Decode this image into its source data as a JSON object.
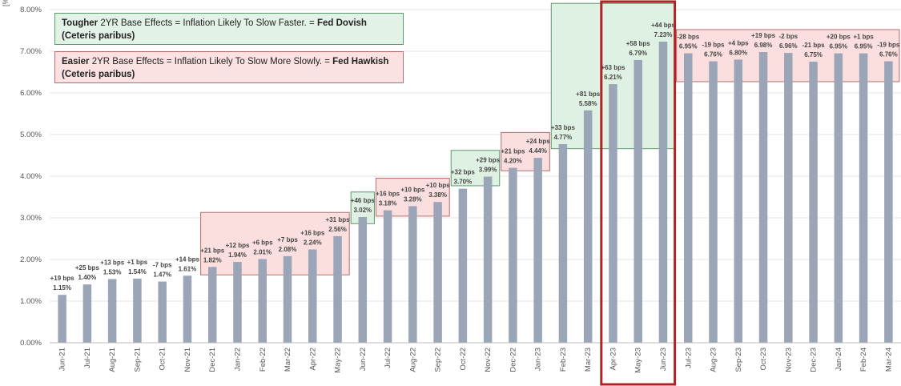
{
  "chart_data": {
    "type": "bar",
    "ylabel": "[%]",
    "ylim": [
      0,
      8
    ],
    "yticks": [
      "0.00%",
      "1.00%",
      "2.00%",
      "3.00%",
      "4.00%",
      "5.00%",
      "6.00%",
      "7.00%",
      "8.00%"
    ],
    "categories": [
      "Jun-21",
      "Jul-21",
      "Aug-21",
      "Sep-21",
      "Oct-21",
      "Nov-21",
      "Dec-21",
      "Jan-22",
      "Feb-22",
      "Mar-22",
      "Apr-22",
      "May-22",
      "Jun-22",
      "Jul-22",
      "Aug-22",
      "Sep-22",
      "Oct-22",
      "Nov-22",
      "Dec-22",
      "Jan-23",
      "Feb-23",
      "Mar-23",
      "Apr-23",
      "May-23",
      "Jun-23",
      "Jul-23",
      "Aug-23",
      "Sep-23",
      "Oct-23",
      "Nov-23",
      "Dec-23",
      "Jan-24",
      "Feb-24",
      "Mar-24"
    ],
    "values": [
      1.15,
      1.4,
      1.53,
      1.54,
      1.47,
      1.61,
      1.82,
      1.94,
      2.01,
      2.08,
      2.24,
      2.56,
      3.02,
      3.18,
      3.28,
      3.38,
      3.7,
      3.99,
      4.2,
      4.44,
      4.77,
      5.58,
      6.21,
      6.79,
      7.23,
      6.95,
      6.76,
      6.8,
      6.98,
      6.96,
      6.75,
      6.95,
      6.95,
      6.76
    ],
    "value_labels": [
      "1.15%",
      "1.40%",
      "1.53%",
      "1.54%",
      "1.47%",
      "1.61%",
      "1.82%",
      "1.94%",
      "2.01%",
      "2.08%",
      "2.24%",
      "2.56%",
      "3.02%",
      "3.18%",
      "3.28%",
      "3.38%",
      "3.70%",
      "3.99%",
      "4.20%",
      "4.44%",
      "4.77%",
      "5.58%",
      "6.21%",
      "6.79%",
      "7.23%",
      "6.95%",
      "6.76%",
      "6.80%",
      "6.98%",
      "6.96%",
      "6.75%",
      "6.95%",
      "6.95%",
      "6.76%"
    ],
    "change_labels": [
      "+19 bps",
      "+25 bps",
      "+13 bps",
      "+1 bps",
      "-7 bps",
      "+14 bps",
      "+21 bps",
      "+12 bps",
      "+6 bps",
      "+7 bps",
      "+16 bps",
      "+31 bps",
      "+46 bps",
      "+16 bps",
      "+10 bps",
      "+10 bps",
      "+32 bps",
      "+29 bps",
      "+21 bps",
      "+24 bps",
      "+33 bps",
      "+81 bps",
      "+63 bps",
      "+58 bps",
      "+44 bps",
      "-28 bps",
      "-19 bps",
      "+4 bps",
      "+19 bps",
      "-2 bps",
      "-21 bps",
      "+20 bps",
      "+1 bps",
      "-19 bps"
    ],
    "bar_color": "#9aa5b8",
    "regions": [
      {
        "kind": "easier",
        "from": 6,
        "to": 11,
        "ylow": 1.63,
        "yhigh": 3.13
      },
      {
        "kind": "tougher",
        "from": 12,
        "to": 12,
        "ylow": 2.86,
        "yhigh": 3.62
      },
      {
        "kind": "easier",
        "from": 13,
        "to": 15,
        "ylow": 3.04,
        "yhigh": 3.95
      },
      {
        "kind": "tougher",
        "from": 16,
        "to": 17,
        "ylow": 3.77,
        "yhigh": 4.62
      },
      {
        "kind": "easier",
        "from": 18,
        "to": 19,
        "ylow": 4.13,
        "yhigh": 5.05
      },
      {
        "kind": "tougher",
        "from": 20,
        "to": 24,
        "ylow": 4.66,
        "yhigh": 8.15
      },
      {
        "kind": "easier",
        "from": 25,
        "to": 33,
        "ylow": 6.27,
        "yhigh": 7.52
      }
    ],
    "highlight": {
      "from": 22,
      "to": 24,
      "color": "#b22222"
    },
    "region_colors": {
      "tougher_fill": "#dff1e3",
      "tougher_stroke": "#5a9a6a",
      "easier_fill": "#fbdede",
      "easier_stroke": "#b86c6c"
    },
    "legend": {
      "tougher": {
        "bold1": "Tougher",
        "text": " 2YR Base Effects = Inflation Likely To Slow Faster. = ",
        "bold2": "Fed Dovish",
        "line2": "(Ceteris paribus)"
      },
      "easier": {
        "bold1": "Easier",
        "text": " 2YR Base Effects = Inflation Likely To Slow More Slowly. = ",
        "bold2": "Fed Hawkish",
        "line2": "(Ceteris paribus)"
      }
    }
  }
}
